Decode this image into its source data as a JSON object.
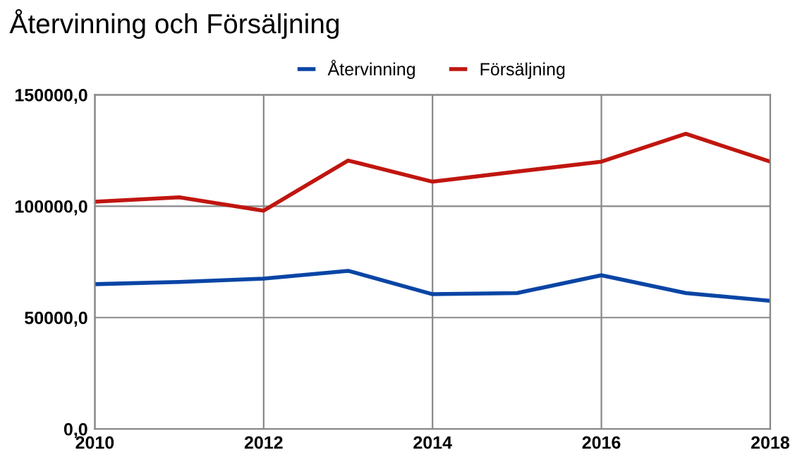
{
  "chart_data": {
    "type": "line",
    "title": "Återvinning och Försäljning",
    "x": [
      2010,
      2011,
      2012,
      2013,
      2014,
      2015,
      2016,
      2017,
      2018
    ],
    "series": [
      {
        "name": "Återvinning",
        "color": "#0a45a5",
        "values": [
          65000,
          66000,
          67500,
          71000,
          60500,
          61000,
          69000,
          61000,
          57500
        ]
      },
      {
        "name": "Försäljning",
        "color": "#c0160f",
        "values": [
          102000,
          104000,
          98000,
          120500,
          111000,
          115500,
          120000,
          132500,
          120000
        ]
      }
    ],
    "xlim": [
      2010,
      2018
    ],
    "xticks": [
      2010,
      2012,
      2014,
      2016,
      2018
    ],
    "ylim": [
      0,
      150000
    ],
    "yticks": [
      {
        "value": 0,
        "label": "0,0"
      },
      {
        "value": 50000,
        "label": "50000,0"
      },
      {
        "value": 100000,
        "label": "100000,0"
      },
      {
        "value": 150000,
        "label": "150000,0"
      }
    ],
    "grid": true,
    "legend": "top",
    "marker": "none",
    "line_style": "solid"
  }
}
